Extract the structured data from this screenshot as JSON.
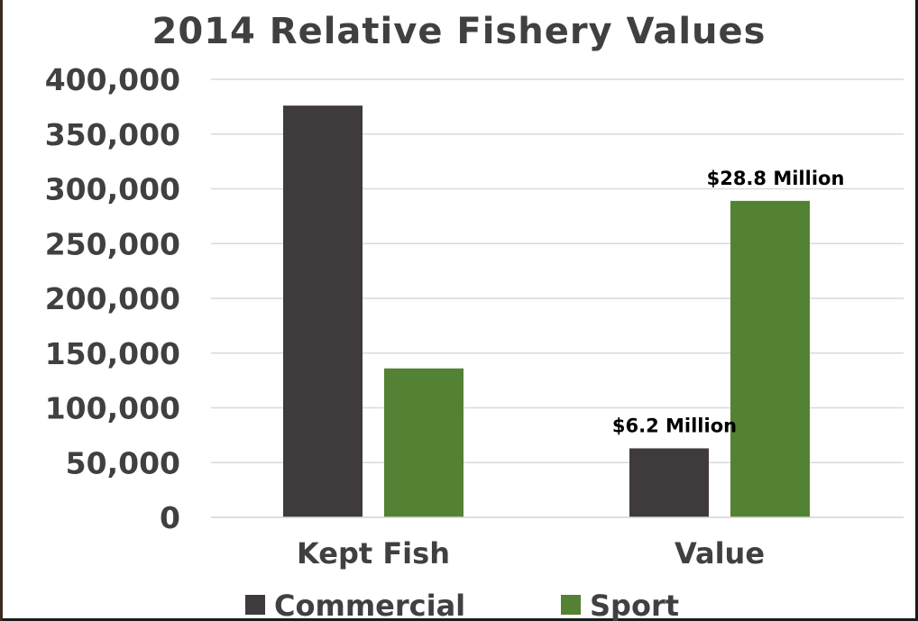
{
  "chart_data": {
    "type": "bar",
    "title": "2014 Relative Fishery Values",
    "categories": [
      "Kept Fish",
      "Value"
    ],
    "series": [
      {
        "name": "Commercial",
        "color": "#3f3a3b",
        "values": [
          376000,
          63000
        ]
      },
      {
        "name": "Sport",
        "color": "#548235",
        "values": [
          136000,
          289000
        ]
      }
    ],
    "ylim": [
      0,
      400000
    ],
    "yticks": [
      "0",
      "50,000",
      "100,000",
      "150,000",
      "200,000",
      "250,000",
      "300,000",
      "350,000",
      "400,000"
    ],
    "data_labels": [
      {
        "series": "Commercial",
        "category": "Value",
        "text": "$6.2 Million"
      },
      {
        "series": "Sport",
        "category": "Value",
        "text": "$28.8 Million"
      }
    ],
    "grid": true,
    "legend_position": "bottom"
  }
}
